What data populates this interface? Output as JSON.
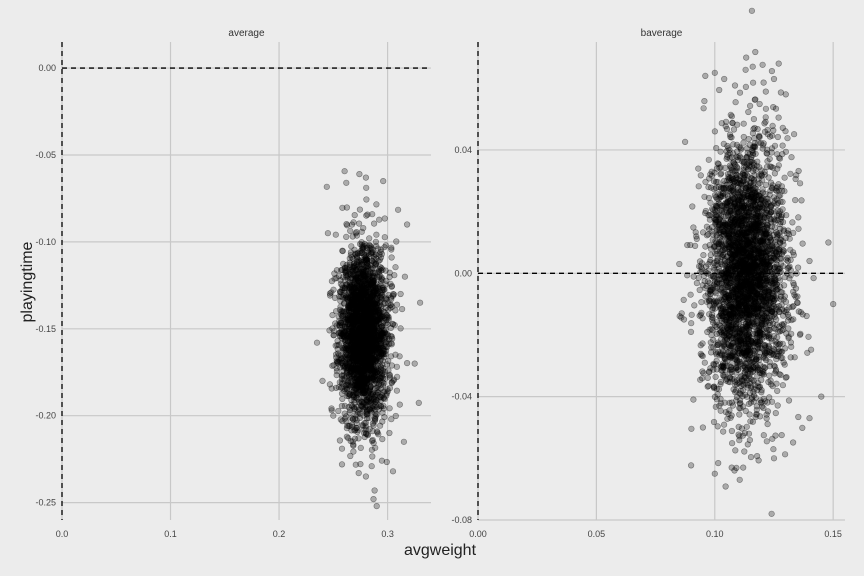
{
  "chart_data": {
    "type": "scatter",
    "xlabel": "avgweight",
    "ylabel": "playingtime",
    "reference_lines": {
      "x": 0,
      "y": 0,
      "style": "dashed"
    },
    "point_style": {
      "color": "#000000",
      "alpha": 0.3
    },
    "grid": true,
    "facets": [
      {
        "label": "average",
        "xlim": [
          0,
          0.34
        ],
        "ylim": [
          -0.26,
          0.015
        ],
        "x_ticks": [
          0.0,
          0.1,
          0.2,
          0.3
        ],
        "x_tick_labels": [
          "0.0",
          "0.1",
          "0.2",
          "0.3"
        ],
        "y_ticks": [
          0.0,
          -0.05,
          -0.1,
          -0.15,
          -0.2,
          -0.25
        ],
        "y_tick_labels": [
          "0.00",
          "-0.05",
          "-0.10",
          "-0.15",
          "-0.20",
          "-0.25"
        ],
        "cloud": {
          "center": [
            0.278,
            -0.153
          ],
          "sd": [
            0.011,
            0.025
          ],
          "n": 2600,
          "seed": 11
        },
        "points": [
          [
            0.274,
            -0.061
          ],
          [
            0.28,
            -0.063
          ],
          [
            0.296,
            -0.065
          ],
          [
            0.262,
            -0.066
          ],
          [
            0.245,
            -0.095
          ],
          [
            0.318,
            -0.09
          ],
          [
            0.312,
            -0.13
          ],
          [
            0.33,
            -0.135
          ],
          [
            0.24,
            -0.18
          ],
          [
            0.25,
            -0.2
          ],
          [
            0.258,
            -0.219
          ],
          [
            0.28,
            -0.235
          ],
          [
            0.288,
            -0.243
          ],
          [
            0.29,
            -0.252
          ],
          [
            0.287,
            -0.248
          ],
          [
            0.305,
            -0.232
          ],
          [
            0.315,
            -0.215
          ],
          [
            0.258,
            -0.228
          ],
          [
            0.235,
            -0.158
          ],
          [
            0.325,
            -0.17
          ]
        ]
      },
      {
        "label": "baverage",
        "xlim": [
          0,
          0.155
        ],
        "ylim": [
          -0.08,
          0.075
        ],
        "x_ticks": [
          0.0,
          0.05,
          0.1,
          0.15
        ],
        "x_tick_labels": [
          "0.00",
          "0.05",
          "0.10",
          "0.15"
        ],
        "y_ticks": [
          0.04,
          0.0,
          -0.04,
          -0.08
        ],
        "y_tick_labels": [
          "0.04",
          "0.00",
          "-0.04",
          "-0.08"
        ],
        "cloud": {
          "center": [
            0.113,
            0.0
          ],
          "sd": [
            0.0085,
            0.021
          ],
          "n": 3200,
          "seed": 29
        },
        "points": [
          [
            0.096,
            0.064
          ],
          [
            0.1,
            0.065
          ],
          [
            0.104,
            0.063
          ],
          [
            0.113,
            0.066
          ],
          [
            0.116,
            0.067
          ],
          [
            0.125,
            0.063
          ],
          [
            0.127,
            0.068
          ],
          [
            0.13,
            0.058
          ],
          [
            0.085,
            0.003
          ],
          [
            0.087,
            -0.015
          ],
          [
            0.14,
            0.004
          ],
          [
            0.148,
            0.01
          ],
          [
            0.15,
            -0.01
          ],
          [
            0.145,
            -0.04
          ],
          [
            0.1,
            -0.065
          ],
          [
            0.112,
            -0.063
          ],
          [
            0.125,
            -0.06
          ],
          [
            0.124,
            -0.078
          ],
          [
            0.14,
            -0.047
          ],
          [
            0.095,
            -0.05
          ]
        ]
      }
    ]
  }
}
